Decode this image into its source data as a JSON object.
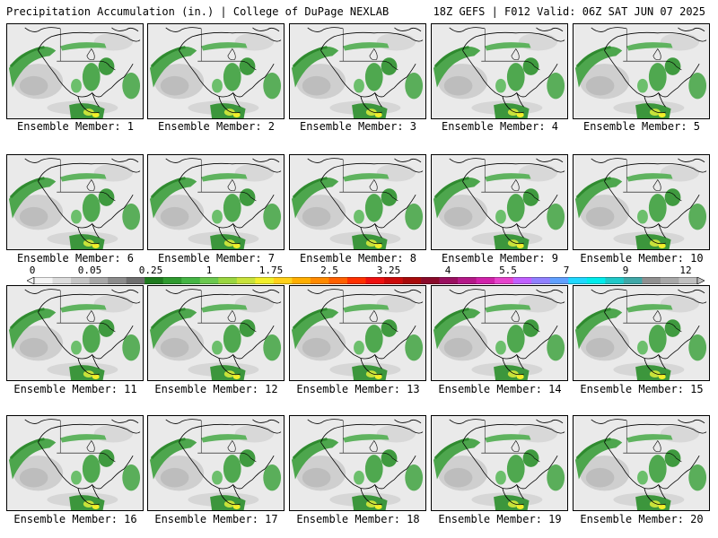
{
  "header": {
    "title_left": "Precipitation Accumulation (in.) | College of DuPage NEXLAB",
    "title_right": "18Z GEFS | F012 Valid: 06Z SAT JUN 07 2025"
  },
  "members": [
    "Ensemble Member: 1",
    "Ensemble Member: 2",
    "Ensemble Member: 3",
    "Ensemble Member: 4",
    "Ensemble Member: 5",
    "Ensemble Member: 6",
    "Ensemble Member: 7",
    "Ensemble Member: 8",
    "Ensemble Member: 9",
    "Ensemble Member: 10",
    "Ensemble Member: 11",
    "Ensemble Member: 12",
    "Ensemble Member: 13",
    "Ensemble Member: 14",
    "Ensemble Member: 15",
    "Ensemble Member: 16",
    "Ensemble Member: 17",
    "Ensemble Member: 18",
    "Ensemble Member: 19",
    "Ensemble Member: 20"
  ],
  "colorbar": {
    "tick_labels": [
      "0",
      "0.05",
      "0.25",
      "1",
      "1.75",
      "2.5",
      "3.25",
      "4",
      "5.5",
      "7",
      "9",
      "12"
    ],
    "colors": [
      "#f4f4f4",
      "#dcdcdc",
      "#c4c4c4",
      "#a8a8a8",
      "#8c8c8c",
      "#6e6e6e",
      "#1e7a1e",
      "#2f9a2f",
      "#45b545",
      "#6cc94f",
      "#9ad640",
      "#c8e23a",
      "#f2ef2a",
      "#ffd11a",
      "#ffae00",
      "#ff8a00",
      "#ff6000",
      "#ff3000",
      "#ee1010",
      "#cc0a0a",
      "#a80a0a",
      "#8a0a2a",
      "#9a1060",
      "#b41888",
      "#d022aa",
      "#e644cc",
      "#c060ff",
      "#9080ff",
      "#60a0ff",
      "#20d8ff",
      "#00ecec",
      "#20c8c8",
      "#40a8a8",
      "#909090",
      "#a8a8a8",
      "#c0c0c0"
    ]
  }
}
